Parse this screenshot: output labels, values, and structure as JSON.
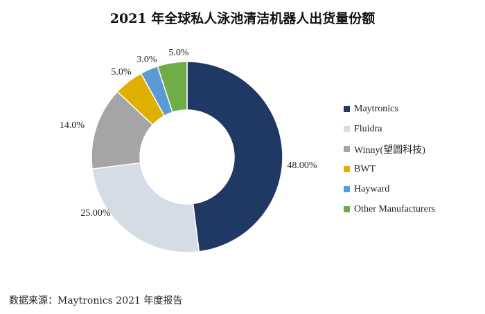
{
  "chart_data": {
    "type": "pie",
    "subtype": "donut",
    "title": "2021 年全球私人泳池清洁机器人出货量份额",
    "legend_position": "right",
    "series": [
      {
        "name": "Maytronics",
        "value": 48.0,
        "label": "48.00%",
        "color": "#203864"
      },
      {
        "name": "Fluidra",
        "value": 25.0,
        "label": "25.00%",
        "color": "#d6dce5"
      },
      {
        "name": "Winny(望圆科技)",
        "value": 14.0,
        "label": "14.0%",
        "color": "#a5a5a5"
      },
      {
        "name": "BWT",
        "value": 5.0,
        "label": "5.0%",
        "color": "#e0b000"
      },
      {
        "name": "Hayward",
        "value": 3.0,
        "label": "3.0%",
        "color": "#5b9bd5"
      },
      {
        "name": "Other Manufacturers",
        "value": 5.0,
        "label": "5.0%",
        "color": "#70ad47"
      }
    ]
  },
  "source_text": "数据来源：Maytronics 2021 年度报告"
}
